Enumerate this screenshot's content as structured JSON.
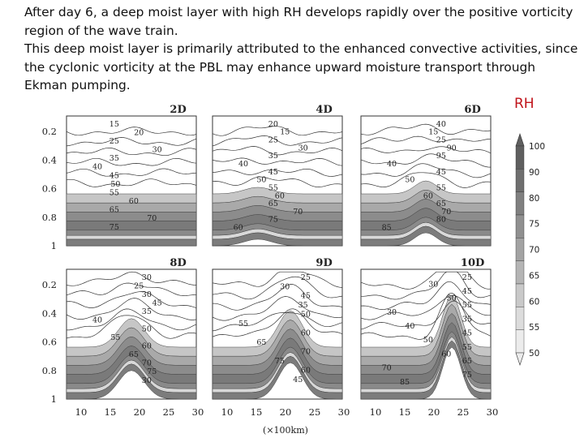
{
  "slide": {
    "paragraphs": [
      "After day 6, a deep moist layer with high RH develops rapidly over the positive vorticity region of the wave train.",
      "This deep moist layer is primarily attributed to the enhanced convective activities, since the cyclonic vorticity at the PBL may enhance upward moisture transport through Ekman pumping."
    ],
    "rh_title": "RH"
  },
  "figure": {
    "x_unit": "(×100km)",
    "x_ticks": [
      "10",
      "15",
      "20",
      "25",
      "30"
    ],
    "y_ticks": [
      "0.2",
      "0.4",
      "0.6",
      "0.8",
      "1"
    ],
    "panels": [
      {
        "title": "2D",
        "labels": [
          "15",
          "20",
          "25",
          "30",
          "35",
          "40",
          "45",
          "50",
          "55",
          "60",
          "65",
          "70",
          "75"
        ]
      },
      {
        "title": "4D",
        "labels": [
          "20",
          "15",
          "25",
          "30",
          "35",
          "40",
          "45",
          "50",
          "55",
          "60",
          "65",
          "70",
          "75",
          "60"
        ]
      },
      {
        "title": "6D",
        "labels": [
          "40",
          "15",
          "25",
          "90",
          "95",
          "40",
          "45",
          "50",
          "55",
          "60",
          "65",
          "70",
          "80",
          "85"
        ]
      },
      {
        "title": "8D",
        "labels": [
          "30",
          "25",
          "30",
          "45",
          "35",
          "40",
          "50",
          "55",
          "60",
          "65",
          "70",
          "75",
          "30"
        ]
      },
      {
        "title": "9D",
        "labels": [
          "25",
          "30",
          "45",
          "35",
          "50",
          "55",
          "60",
          "65",
          "70",
          "75",
          "60",
          "45"
        ]
      },
      {
        "title": "10D",
        "labels": [
          "25",
          "30",
          "45",
          "50",
          "55",
          "30",
          "35",
          "40",
          "45",
          "50",
          "55",
          "60",
          "65",
          "70",
          "75",
          "85"
        ]
      }
    ],
    "colorbar": {
      "labels": [
        "100",
        "90",
        "80",
        "75",
        "70",
        "65",
        "60",
        "55",
        "50"
      ],
      "colors": [
        "#5f5f5f",
        "#6f6f6f",
        "#808080",
        "#909090",
        "#a3a3a3",
        "#b5b5b5",
        "#c9c9c9",
        "#dcdcdc",
        "#ececec"
      ]
    }
  }
}
